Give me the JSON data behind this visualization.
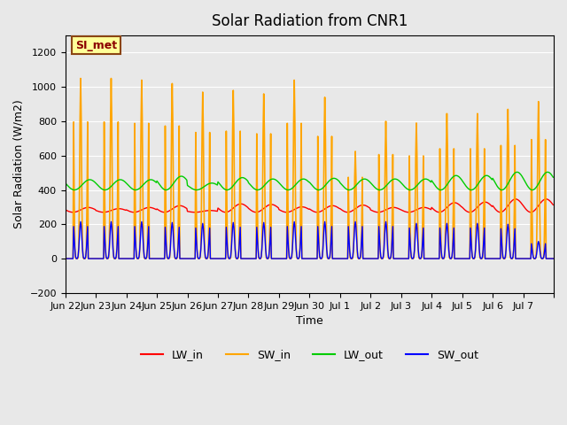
{
  "title": "Solar Radiation from CNR1",
  "xlabel": "Time",
  "ylabel": "Solar Radiation (W/m2)",
  "ylim": [
    -200,
    1300
  ],
  "yticks": [
    -200,
    0,
    200,
    400,
    600,
    800,
    1000,
    1200
  ],
  "background_color": "#e8e8e8",
  "plot_bg_color": "#e8e8e8",
  "grid_color": "#ffffff",
  "annotation_text": "SI_met",
  "annotation_bg": "#ffff99",
  "annotation_border": "#8b4513",
  "annotation_text_color": "#8b0000",
  "colors": {
    "LW_in": "#ff0000",
    "SW_in": "#ffa500",
    "LW_out": "#00cc00",
    "SW_out": "#0000ff"
  },
  "n_days": 16,
  "x_tick_positions": [
    0,
    1,
    2,
    3,
    4,
    5,
    6,
    7,
    8,
    9,
    10,
    11,
    12,
    13,
    14,
    15,
    16
  ],
  "x_tick_labels": [
    "Jun 22",
    "Jun 23",
    "Jun 24",
    "Jun 25",
    "Jun 26",
    "Jun 27",
    "Jun 28",
    "Jun 29",
    "Jun 30",
    "Jul 1",
    "Jul 2",
    "Jul 3",
    "Jul 4",
    "Jul 5",
    "Jul 6",
    "Jul 7",
    ""
  ],
  "SW_in_peaks": [
    1050,
    1050,
    1040,
    1020,
    970,
    980,
    960,
    1040,
    940,
    625,
    800,
    790,
    845,
    845,
    870,
    915
  ],
  "LW_in_base": 270,
  "LW_in_day_peaks": [
    310,
    300,
    310,
    325,
    285,
    340,
    335,
    315,
    325,
    330,
    310,
    310,
    350,
    355,
    380,
    380
  ],
  "LW_out_base": 400,
  "LW_out_day_peaks": [
    475,
    475,
    475,
    500,
    450,
    490,
    480,
    480,
    485,
    480,
    480,
    480,
    505,
    505,
    530,
    530
  ],
  "SW_out_peaks": [
    215,
    215,
    215,
    210,
    205,
    210,
    210,
    215,
    215,
    215,
    215,
    205,
    205,
    205,
    200,
    100
  ],
  "figsize": [
    6.4,
    4.8
  ],
  "dpi": 100
}
